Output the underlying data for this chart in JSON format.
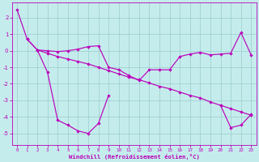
{
  "xlabel": "Windchill (Refroidissement éolien,°C)",
  "background_color": "#c5ecec",
  "line_color": "#bb00bb",
  "grid_color": "#99cccc",
  "ylim": [
    -5.7,
    2.9
  ],
  "xlim": [
    -0.5,
    23.5
  ],
  "yticks": [
    2,
    1,
    0,
    -1,
    -2,
    -3,
    -4,
    -5
  ],
  "xticks": [
    0,
    1,
    2,
    3,
    4,
    5,
    6,
    7,
    8,
    9,
    10,
    11,
    12,
    13,
    14,
    15,
    16,
    17,
    18,
    19,
    20,
    21,
    22,
    23
  ],
  "curve_a_x": [
    0,
    1,
    2,
    3,
    4,
    5,
    6,
    7,
    8,
    9,
    10,
    11,
    12,
    13,
    14,
    15,
    16,
    17,
    18,
    19,
    20,
    21,
    22,
    23
  ],
  "curve_a_y": [
    2.5,
    0.7,
    0.05,
    0.0,
    -0.05,
    0.0,
    0.1,
    0.25,
    0.3,
    -1.0,
    -1.15,
    -1.5,
    -1.8,
    -1.15,
    -1.15,
    -1.15,
    -0.35,
    -0.2,
    -0.1,
    -0.25,
    -0.2,
    -0.15,
    1.1,
    -0.25
  ],
  "curve_b_x": [
    1,
    2,
    3,
    4,
    5,
    6,
    7,
    8,
    9,
    10,
    11,
    12,
    13,
    14,
    15,
    16,
    17,
    18,
    19,
    20,
    21,
    22,
    23
  ],
  "curve_b_y": [
    0.7,
    0.05,
    -0.15,
    -0.35,
    -0.5,
    -0.65,
    -0.8,
    -1.0,
    -1.2,
    -1.4,
    -1.6,
    -1.75,
    -1.95,
    -2.15,
    -2.3,
    -2.5,
    -2.7,
    -2.85,
    -3.1,
    -3.3,
    -3.5,
    -3.7,
    -3.9
  ],
  "curve_c_x": [
    2,
    3,
    4,
    5,
    6,
    7,
    8,
    9,
    null,
    20,
    21,
    22,
    23
  ],
  "curve_c_y": [
    0.05,
    -1.3,
    -4.2,
    -4.5,
    -4.85,
    -5.0,
    -4.4,
    -2.7,
    null,
    -3.3,
    -4.65,
    -4.5,
    -3.85
  ]
}
